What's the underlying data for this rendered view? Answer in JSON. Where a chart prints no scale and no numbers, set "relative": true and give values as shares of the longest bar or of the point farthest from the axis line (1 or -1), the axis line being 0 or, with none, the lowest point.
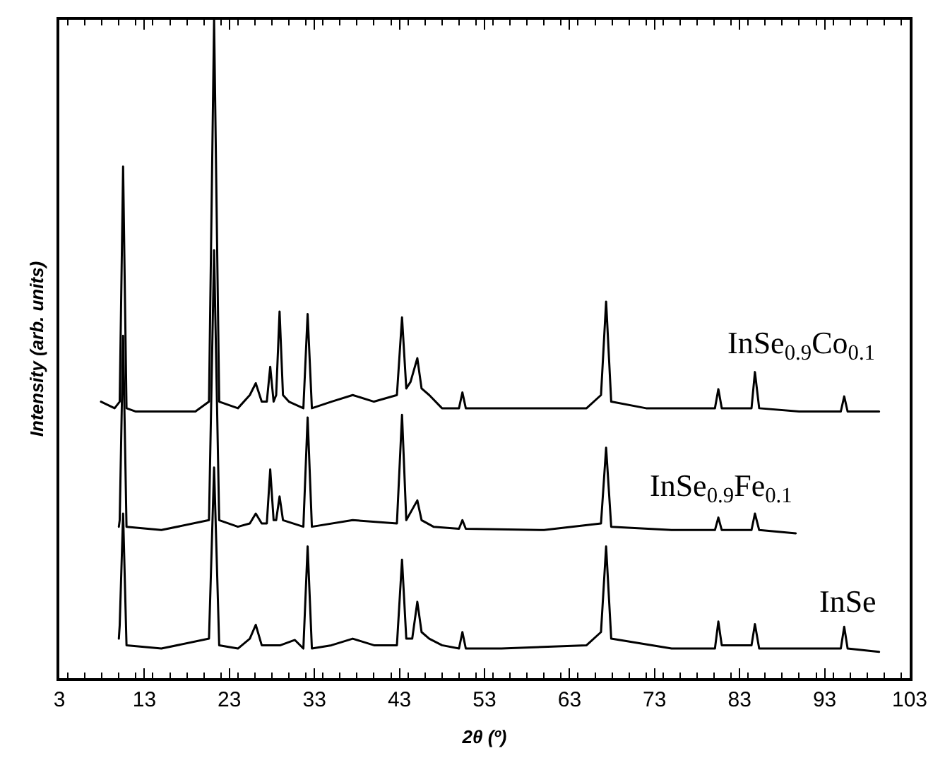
{
  "chart_data": {
    "type": "line",
    "relative": true,
    "xlabel": "2θ (º)",
    "ylabel": "Intensity (arb. units)",
    "xlim": [
      3,
      103
    ],
    "xticks": [
      3,
      13,
      23,
      33,
      43,
      53,
      63,
      73,
      83,
      93,
      103
    ],
    "legend": false,
    "marker": "none",
    "line_style": "solid",
    "series": [
      {
        "name": "InSe$_{0.9}$Co$_{0.1}$",
        "color": "#000000",
        "x": [
          7.9,
          9.5,
          10.1,
          10.5,
          10.9,
          12,
          16,
          19,
          20.6,
          21.2,
          21.8,
          24,
          25.4,
          26.1,
          26.8,
          27.4,
          27.8,
          28.2,
          28.5,
          28.9,
          29.3,
          30,
          31.7,
          32.2,
          32.7,
          35,
          37.5,
          40,
          42.7,
          43.3,
          43.8,
          44.3,
          45.1,
          45.6,
          46.5,
          48,
          50,
          50.4,
          50.8,
          55,
          60,
          65,
          66.7,
          67.3,
          67.9,
          72,
          78,
          80.1,
          80.5,
          80.9,
          84.4,
          84.8,
          85.3,
          90,
          94.9,
          95.3,
          95.7,
          99.4
        ],
        "values": [
          0.42,
          0.41,
          0.42,
          0.777,
          0.41,
          0.405,
          0.405,
          0.405,
          0.42,
          1,
          0.42,
          0.41,
          0.43,
          0.448,
          0.42,
          0.42,
          0.473,
          0.42,
          0.43,
          0.557,
          0.43,
          0.42,
          0.41,
          0.553,
          0.41,
          0.42,
          0.43,
          0.42,
          0.43,
          0.548,
          0.44,
          0.45,
          0.486,
          0.44,
          0.43,
          0.41,
          0.41,
          0.434,
          0.41,
          0.41,
          0.41,
          0.41,
          0.43,
          0.572,
          0.42,
          0.41,
          0.41,
          0.41,
          0.439,
          0.41,
          0.41,
          0.465,
          0.41,
          0.405,
          0.405,
          0.428,
          0.405,
          0.405
        ]
      },
      {
        "name": "InSe$_{0.9}$Fe$_{0.1}$",
        "color": "#000000",
        "x": [
          10,
          10.1,
          10.5,
          10.9,
          15,
          20.6,
          21.2,
          21.8,
          24,
          25.4,
          26.1,
          26.8,
          27.4,
          27.8,
          28.2,
          28.5,
          28.9,
          29.3,
          31.7,
          32.2,
          32.7,
          37.5,
          42.7,
          43.3,
          43.8,
          45.1,
          45.6,
          47,
          50,
          50.4,
          50.8,
          60,
          66.7,
          67.3,
          67.9,
          75,
          80.1,
          80.5,
          80.9,
          84.4,
          84.8,
          85.3,
          89.6
        ],
        "values": [
          0.23,
          0.24,
          0.52,
          0.23,
          0.225,
          0.24,
          0.65,
          0.24,
          0.23,
          0.235,
          0.25,
          0.235,
          0.235,
          0.317,
          0.24,
          0.24,
          0.276,
          0.24,
          0.23,
          0.396,
          0.23,
          0.24,
          0.235,
          0.4,
          0.24,
          0.27,
          0.24,
          0.23,
          0.227,
          0.24,
          0.227,
          0.225,
          0.235,
          0.35,
          0.23,
          0.225,
          0.225,
          0.244,
          0.225,
          0.225,
          0.25,
          0.225,
          0.22
        ]
      },
      {
        "name": "InSe",
        "color": "#000000",
        "x": [
          10,
          10.1,
          10.5,
          10.9,
          15,
          20.6,
          21.2,
          21.8,
          24,
          25.4,
          26.1,
          26.8,
          29,
          30.7,
          31.7,
          32.2,
          32.7,
          35,
          37.5,
          40,
          42.7,
          43.3,
          43.8,
          44.5,
          45.1,
          45.6,
          46.5,
          48,
          50,
          50.4,
          50.8,
          55,
          65,
          66.7,
          67.3,
          67.9,
          75,
          80.1,
          80.5,
          80.9,
          84.4,
          84.8,
          85.3,
          90,
          94.9,
          95.3,
          95.7,
          99.4
        ],
        "values": [
          0.06,
          0.08,
          0.25,
          0.05,
          0.045,
          0.06,
          0.32,
          0.05,
          0.045,
          0.06,
          0.081,
          0.05,
          0.05,
          0.058,
          0.045,
          0.2,
          0.045,
          0.05,
          0.06,
          0.05,
          0.05,
          0.18,
          0.06,
          0.06,
          0.116,
          0.07,
          0.06,
          0.05,
          0.045,
          0.07,
          0.045,
          0.045,
          0.05,
          0.07,
          0.2,
          0.06,
          0.045,
          0.045,
          0.086,
          0.05,
          0.05,
          0.082,
          0.045,
          0.045,
          0.045,
          0.078,
          0.045,
          0.04
        ]
      }
    ]
  }
}
